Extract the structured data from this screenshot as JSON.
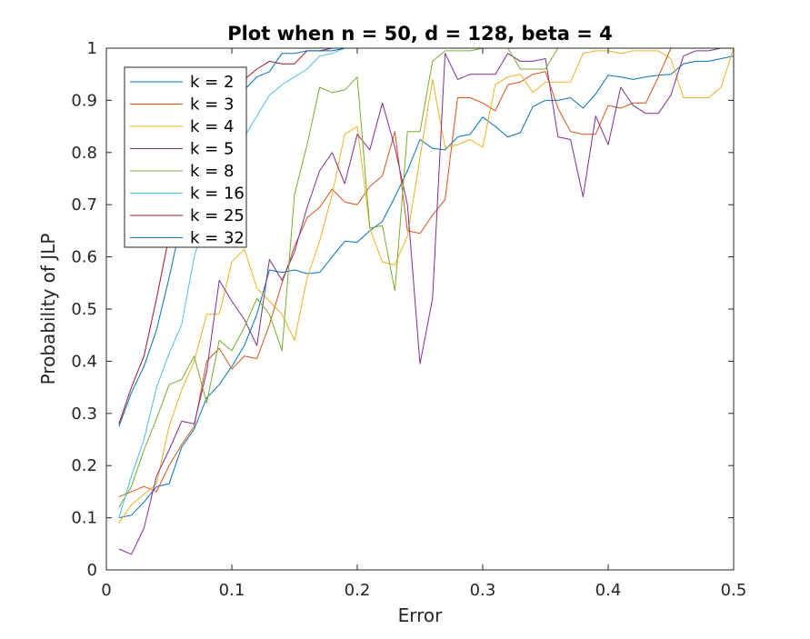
{
  "chart_data": {
    "type": "line",
    "title": "Plot when n = 50, d = 128, beta = 4",
    "xlabel": "Error",
    "ylabel": "Probability of JLP",
    "xlim": [
      0,
      0.5
    ],
    "ylim": [
      0,
      1
    ],
    "xticks": [
      0,
      0.1,
      0.2,
      0.3,
      0.4,
      0.5
    ],
    "xtick_labels": [
      "0",
      "0.1",
      "0.2",
      "0.3",
      "0.4",
      "0.5"
    ],
    "yticks": [
      0,
      0.1,
      0.2,
      0.3,
      0.4,
      0.5,
      0.6,
      0.7,
      0.8,
      0.9,
      1
    ],
    "ytick_labels": [
      "0",
      "0.1",
      "0.2",
      "0.3",
      "0.4",
      "0.5",
      "0.6",
      "0.7",
      "0.8",
      "0.9",
      "1"
    ],
    "grid": false,
    "legend_position": "top-left",
    "x": [
      0.01,
      0.02,
      0.03,
      0.04,
      0.05,
      0.06,
      0.07,
      0.08,
      0.09,
      0.1,
      0.11,
      0.12,
      0.13,
      0.14,
      0.15,
      0.16,
      0.17,
      0.18,
      0.19,
      0.2,
      0.21,
      0.22,
      0.23,
      0.24,
      0.25,
      0.26,
      0.27,
      0.28,
      0.29,
      0.3,
      0.31,
      0.32,
      0.33,
      0.34,
      0.35,
      0.36,
      0.37,
      0.38,
      0.39,
      0.4,
      0.41,
      0.42,
      0.43,
      0.44,
      0.45,
      0.46,
      0.47,
      0.48,
      0.49,
      0.5
    ],
    "series": [
      {
        "name": "k = 2",
        "color": "#0072BD",
        "values": [
          0.1,
          0.105,
          0.13,
          0.16,
          0.165,
          0.235,
          0.27,
          0.33,
          0.355,
          0.39,
          0.43,
          0.49,
          0.575,
          0.57,
          0.575,
          0.568,
          0.57,
          0.6,
          0.63,
          0.628,
          0.65,
          0.668,
          0.715,
          0.765,
          0.825,
          0.808,
          0.805,
          0.83,
          0.835,
          0.868,
          0.85,
          0.83,
          0.838,
          0.888,
          0.9,
          0.9,
          0.905,
          0.885,
          0.912,
          0.948,
          0.945,
          0.94,
          0.945,
          0.948,
          0.95,
          0.97,
          0.975,
          0.975,
          0.98,
          0.985
        ]
      },
      {
        "name": "k = 3",
        "color": "#D95319",
        "values": [
          0.14,
          0.15,
          0.16,
          0.15,
          0.2,
          0.24,
          0.275,
          0.4,
          0.425,
          0.385,
          0.41,
          0.405,
          0.47,
          0.55,
          0.62,
          0.675,
          0.695,
          0.73,
          0.705,
          0.7,
          0.735,
          0.755,
          0.84,
          0.65,
          0.645,
          0.68,
          0.71,
          0.905,
          0.905,
          0.895,
          0.88,
          0.93,
          0.935,
          0.95,
          0.955,
          0.885,
          0.84,
          0.835,
          0.835,
          0.89,
          0.885,
          0.895,
          0.895,
          0.945,
          1.0,
          1.0,
          1.0,
          1.0,
          1.0,
          1.0
        ]
      },
      {
        "name": "k = 4",
        "color": "#EDB120",
        "values": [
          0.09,
          0.125,
          0.145,
          0.165,
          0.275,
          0.345,
          0.4,
          0.49,
          0.49,
          0.59,
          0.615,
          0.54,
          0.515,
          0.49,
          0.44,
          0.56,
          0.63,
          0.72,
          0.835,
          0.85,
          0.655,
          0.59,
          0.585,
          0.64,
          0.79,
          0.94,
          0.81,
          0.815,
          0.825,
          0.81,
          0.93,
          0.945,
          0.95,
          0.915,
          0.935,
          0.935,
          0.935,
          0.99,
          0.995,
          0.995,
          0.99,
          0.995,
          0.995,
          0.995,
          0.98,
          0.905,
          0.905,
          0.905,
          0.925,
          1.0
        ]
      },
      {
        "name": "k = 5",
        "color": "#7E2F8E",
        "values": [
          0.04,
          0.03,
          0.08,
          0.18,
          0.23,
          0.285,
          0.28,
          0.38,
          0.555,
          0.515,
          0.48,
          0.43,
          0.595,
          0.555,
          0.61,
          0.695,
          0.765,
          0.8,
          0.74,
          0.835,
          0.805,
          0.895,
          0.81,
          0.7,
          0.395,
          0.52,
          0.99,
          0.94,
          0.95,
          0.95,
          0.95,
          0.99,
          0.975,
          0.975,
          0.98,
          0.83,
          0.825,
          0.715,
          0.87,
          0.815,
          0.925,
          0.89,
          0.875,
          0.875,
          0.91,
          0.985,
          0.995,
          0.995,
          1.0,
          1.0
        ]
      },
      {
        "name": "k = 8",
        "color": "#77AC30",
        "values": [
          0.12,
          0.16,
          0.23,
          0.29,
          0.355,
          0.365,
          0.41,
          0.32,
          0.44,
          0.42,
          0.465,
          0.52,
          0.49,
          0.42,
          0.72,
          0.815,
          0.925,
          0.915,
          0.92,
          0.945,
          0.655,
          0.66,
          0.535,
          0.84,
          0.84,
          0.975,
          0.995,
          0.995,
          0.995,
          1.0,
          1.0,
          1.0,
          0.96,
          0.96,
          0.96,
          1.0,
          1.0,
          1.0,
          1.0,
          1.0,
          1.0,
          1.0,
          1.0,
          1.0,
          1.0,
          1.0,
          1.0,
          1.0,
          1.0,
          1.0
        ]
      },
      {
        "name": "k = 16",
        "color": "#4DBEEE",
        "values": [
          0.1,
          0.18,
          0.25,
          0.35,
          0.415,
          0.47,
          0.6,
          0.68,
          0.76,
          0.785,
          0.83,
          0.87,
          0.91,
          0.93,
          0.945,
          0.96,
          0.985,
          0.99,
          1.0,
          1.0,
          1.0,
          1.0,
          1.0,
          1.0,
          1.0,
          1.0,
          1.0,
          1.0,
          1.0,
          1.0,
          1.0,
          1.0,
          1.0,
          1.0,
          1.0,
          1.0,
          1.0,
          1.0,
          1.0,
          1.0,
          1.0,
          1.0,
          1.0,
          1.0,
          1.0,
          1.0,
          1.0,
          1.0,
          1.0,
          1.0
        ]
      },
      {
        "name": "k = 25",
        "color": "#A2142F",
        "values": [
          0.28,
          0.35,
          0.41,
          0.52,
          0.64,
          0.73,
          0.8,
          0.87,
          0.9,
          0.93,
          0.94,
          0.96,
          0.975,
          0.97,
          0.97,
          0.995,
          0.995,
          1.0,
          1.0,
          1.0,
          1.0,
          1.0,
          1.0,
          1.0,
          1.0,
          1.0,
          1.0,
          1.0,
          1.0,
          1.0,
          1.0,
          1.0,
          1.0,
          1.0,
          1.0,
          1.0,
          1.0,
          1.0,
          1.0,
          1.0,
          1.0,
          1.0,
          1.0,
          1.0,
          1.0,
          1.0,
          1.0,
          1.0,
          1.0,
          1.0
        ]
      },
      {
        "name": "k = 32",
        "color": "#0072BD",
        "values": [
          0.275,
          0.34,
          0.39,
          0.46,
          0.56,
          0.67,
          0.75,
          0.8,
          0.85,
          0.88,
          0.92,
          0.945,
          0.955,
          0.99,
          0.99,
          0.995,
          0.995,
          0.995,
          1.0,
          1.0,
          1.0,
          1.0,
          1.0,
          1.0,
          1.0,
          1.0,
          1.0,
          1.0,
          1.0,
          1.0,
          1.0,
          1.0,
          1.0,
          1.0,
          1.0,
          1.0,
          1.0,
          1.0,
          1.0,
          1.0,
          1.0,
          1.0,
          1.0,
          1.0,
          1.0,
          1.0,
          1.0,
          1.0,
          1.0,
          1.0
        ]
      }
    ]
  }
}
